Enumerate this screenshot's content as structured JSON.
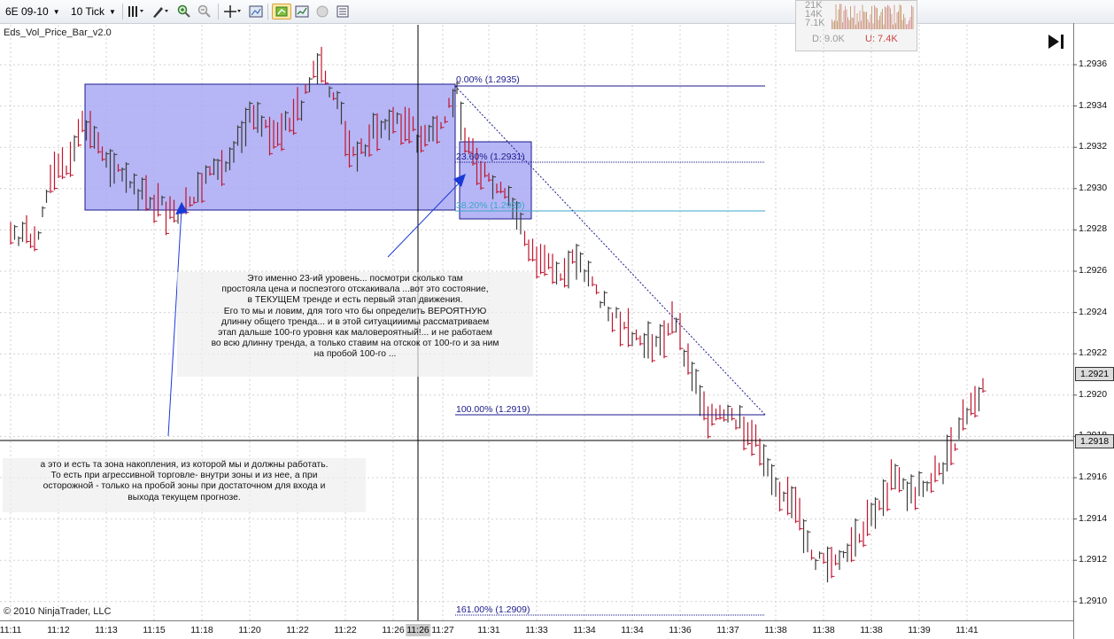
{
  "toolbar": {
    "instrument": "6E 09-10",
    "interval": "10 Tick"
  },
  "indicator_name": "Eds_Vol_Price_Bar_v2.0",
  "copyright": "© 2010 NinjaTrader, LLC",
  "minichart": {
    "levels": [
      "21K",
      "14K",
      "7.1K"
    ],
    "down_volume": "D: 9.0K",
    "up_volume": "U: 7.4K"
  },
  "price_axis": {
    "labels": [
      "1.2936",
      "1.2934",
      "1.2932",
      "1.2930",
      "1.2928",
      "1.2926",
      "1.2924",
      "1.2922",
      "1.2920",
      "1.2918",
      "1.2916",
      "1.2914",
      "1.2912",
      "1.2910"
    ],
    "last_price_tag": "1.2921",
    "crosshair_price_tag": "1.2918"
  },
  "time_axis": {
    "labels": [
      "11:11",
      "11:12",
      "11:13",
      "11:15",
      "11:18",
      "11:20",
      "11:22",
      "11:22",
      "11:26",
      "11:26",
      "11:27",
      "11:31",
      "11:33",
      "11:34",
      "11:34",
      "11:36",
      "11:37",
      "11:38",
      "11:38",
      "11:38",
      "11:39",
      "11:41"
    ],
    "crosshair_time_tag": "11:26"
  },
  "fibonacci": {
    "levels": [
      {
        "label": "0.00% (1.2935)",
        "color": "#1a1a8c"
      },
      {
        "label": "23.60% (1.2931)",
        "color": "#1a1a8c"
      },
      {
        "label": "38.20% (1.2929)",
        "color": "#3aa6c8"
      },
      {
        "label": "100.00% (1.2919)",
        "color": "#1a1a8c"
      },
      {
        "label": "161.00% (1.2909)",
        "color": "#1a1a8c"
      }
    ]
  },
  "annotations": {
    "main": "Это именно 23-ий уровень... посмотри сколько там\nпростояла цена и поспеэтого отскакивала ...вот это состояние,\nв ТЕКУЩЕМ тренде и есть первый этап движения.\nЕго то мы и ловим, для того что бы определить ВЕРОЯТНУЮ\nдлинну общего тренда... и в этой ситуацииимы рассматриваем\nэтап дальше 100-го уровня как маловероятный!... и не работаем\nво всю длинну тренда, а только ставим на отскок от 100-го и за ним\nна пробой 100-го ...",
    "zone": "а это и есть та зона накопления, из которой мы и должны работать.\nТо есть при агрессивной торговле- внутри зоны и из нее, а при\nосторожной - только на пробой зоны при достаточном для входа и\nвыхода текущем прогнозе."
  },
  "colors": {
    "up_bar": "#3a3a3a",
    "down_bar": "#c0142d",
    "zone_fill": "#a9a9f5",
    "zone_border": "#1a1a8c",
    "arrow": "#1a3ad8"
  }
}
